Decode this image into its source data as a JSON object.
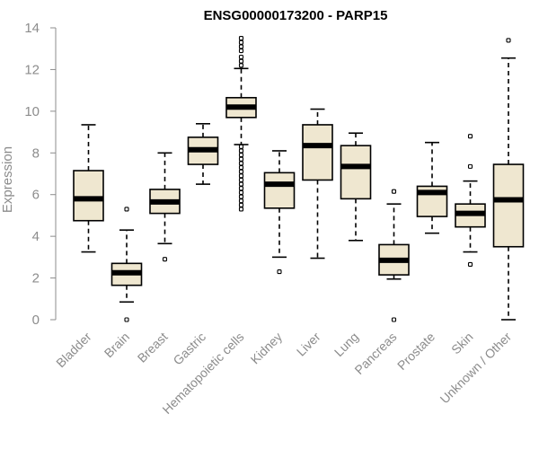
{
  "chart_data": {
    "type": "boxplot",
    "title": "ENSG00000173200 - PARP15",
    "ylabel": "Expression",
    "xlabel": "",
    "ylim": [
      0,
      14
    ],
    "yticks": [
      0,
      2,
      4,
      6,
      8,
      10,
      12,
      14
    ],
    "categories": [
      "Bladder",
      "Brain",
      "Breast",
      "Gastric",
      "Hematopoietic cells",
      "Kidney",
      "Liver",
      "Lung",
      "Pancreas",
      "Prostate",
      "Skin",
      "Unknown / Other"
    ],
    "boxes": [
      {
        "category": "Bladder",
        "whisker_low": 3.25,
        "q1": 4.75,
        "median": 5.8,
        "q3": 7.15,
        "whisker_high": 9.35,
        "outliers": []
      },
      {
        "category": "Brain",
        "whisker_low": 0.85,
        "q1": 1.65,
        "median": 2.25,
        "q3": 2.7,
        "whisker_high": 4.3,
        "outliers": [
          0.0,
          5.3
        ]
      },
      {
        "category": "Breast",
        "whisker_low": 3.65,
        "q1": 5.1,
        "median": 5.65,
        "q3": 6.25,
        "whisker_high": 8.0,
        "outliers": [
          2.9
        ]
      },
      {
        "category": "Gastric",
        "whisker_low": 6.5,
        "q1": 7.45,
        "median": 8.15,
        "q3": 8.75,
        "whisker_high": 9.4,
        "outliers": []
      },
      {
        "category": "Hematopoietic cells",
        "whisker_low": 8.4,
        "q1": 9.7,
        "median": 10.2,
        "q3": 10.65,
        "whisker_high": 12.05,
        "outliers": [
          5.3,
          5.5,
          5.7,
          5.9,
          6.1,
          6.3,
          6.5,
          6.7,
          6.9,
          7.1,
          7.3,
          7.5,
          7.7,
          7.9,
          8.1,
          8.3,
          12.2,
          12.4,
          12.6,
          12.9,
          13.1,
          13.3,
          13.5
        ]
      },
      {
        "category": "Kidney",
        "whisker_low": 3.0,
        "q1": 5.35,
        "median": 6.5,
        "q3": 7.05,
        "whisker_high": 8.1,
        "outliers": [
          2.3
        ]
      },
      {
        "category": "Liver",
        "whisker_low": 2.95,
        "q1": 6.7,
        "median": 8.35,
        "q3": 9.35,
        "whisker_high": 10.1,
        "outliers": []
      },
      {
        "category": "Lung",
        "whisker_low": 3.8,
        "q1": 5.8,
        "median": 7.35,
        "q3": 8.35,
        "whisker_high": 8.95,
        "outliers": []
      },
      {
        "category": "Pancreas",
        "whisker_low": 1.95,
        "q1": 2.15,
        "median": 2.85,
        "q3": 3.6,
        "whisker_high": 5.55,
        "outliers": [
          0.0,
          6.15
        ]
      },
      {
        "category": "Prostate",
        "whisker_low": 4.15,
        "q1": 4.95,
        "median": 6.1,
        "q3": 6.4,
        "whisker_high": 8.5,
        "outliers": []
      },
      {
        "category": "Skin",
        "whisker_low": 3.25,
        "q1": 4.45,
        "median": 5.1,
        "q3": 5.55,
        "whisker_high": 6.65,
        "outliers": [
          2.65,
          7.35,
          8.8
        ]
      },
      {
        "category": "Unknown / Other",
        "whisker_low": 0.0,
        "q1": 3.5,
        "median": 5.75,
        "q3": 7.45,
        "whisker_high": 12.55,
        "outliers": [
          13.4
        ]
      }
    ],
    "box_fill": "#efe7d0",
    "axis_color": "#8c8c8c"
  }
}
